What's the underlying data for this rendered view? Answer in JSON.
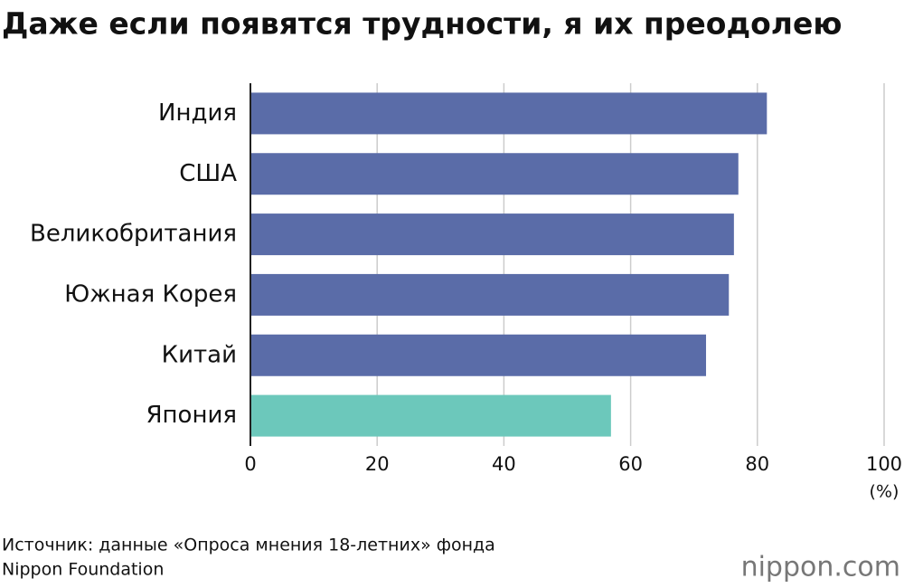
{
  "chart_data": {
    "type": "bar",
    "orientation": "horizontal",
    "title": "Даже если появятся трудности, я их преодолею",
    "categories": [
      "Индия",
      "США",
      "Великобритания",
      "Южная Корея",
      "Китай",
      "Япония"
    ],
    "values": [
      81.5,
      77.0,
      76.3,
      75.5,
      71.9,
      56.9
    ],
    "colors": [
      "#5a6ca8",
      "#5a6ca8",
      "#5a6ca8",
      "#5a6ca8",
      "#5a6ca8",
      "#6cc8bb"
    ],
    "xlim": [
      0,
      100
    ],
    "xticks": [
      0,
      20,
      40,
      60,
      80,
      100
    ],
    "x_unit": "(%)",
    "grid": true,
    "source_lines": [
      "Источник: данные «Опроса мнения 18-летних» фонда",
      "Nippon Foundation"
    ],
    "logo": "nippon.com"
  }
}
